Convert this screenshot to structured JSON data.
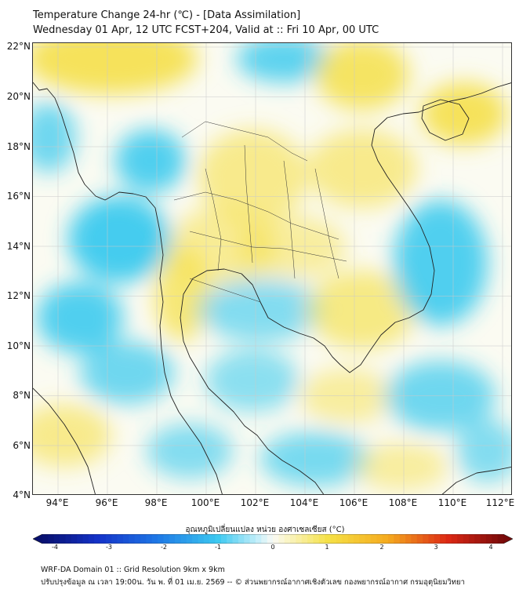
{
  "title_line1": "Temperature Change 24-hr (℃) - [Data Assimilation]",
  "title_line2": "Wednesday 01 Apr, 12 UTC FCST+204, Valid at :: Fri 10 Apr, 00 UTC",
  "lat_labels": [
    "22°N",
    "20°N",
    "18°N",
    "16°N",
    "14°N",
    "12°N",
    "10°N",
    "8°N",
    "6°N",
    "4°N"
  ],
  "lon_labels": [
    "94°E",
    "96°E",
    "98°E",
    "100°E",
    "102°E",
    "104°E",
    "106°E",
    "108°E",
    "110°E",
    "112°E"
  ],
  "colorbar": {
    "title": "อุณหภูมิเปลี่ยนแปลง หน่วย องศาเซลเซียส (°C)",
    "ticks": [
      "-4",
      "-3",
      "-2",
      "-1",
      "0",
      "1",
      "2",
      "3",
      "4"
    ],
    "range": [
      -4,
      4
    ]
  },
  "footer_line1": "WRF-DA Domain 01 :: Grid Resolution 9km x 9km",
  "footer_line2": "ปรับปรุงข้อมูล ณ เวลา 19:00น. วัน พ. ที่ 01 เม.ย. 2569 -- © ส่วนพยากรณ์อากาศเชิงตัวเลข กองพยากรณ์อากาศ กรมอุตุนิยมวิทยา",
  "colors": {
    "warm": "#f5e04a",
    "cool": "#32c8ee",
    "neutral": "#fbfbf2",
    "coast": "#222222"
  }
}
